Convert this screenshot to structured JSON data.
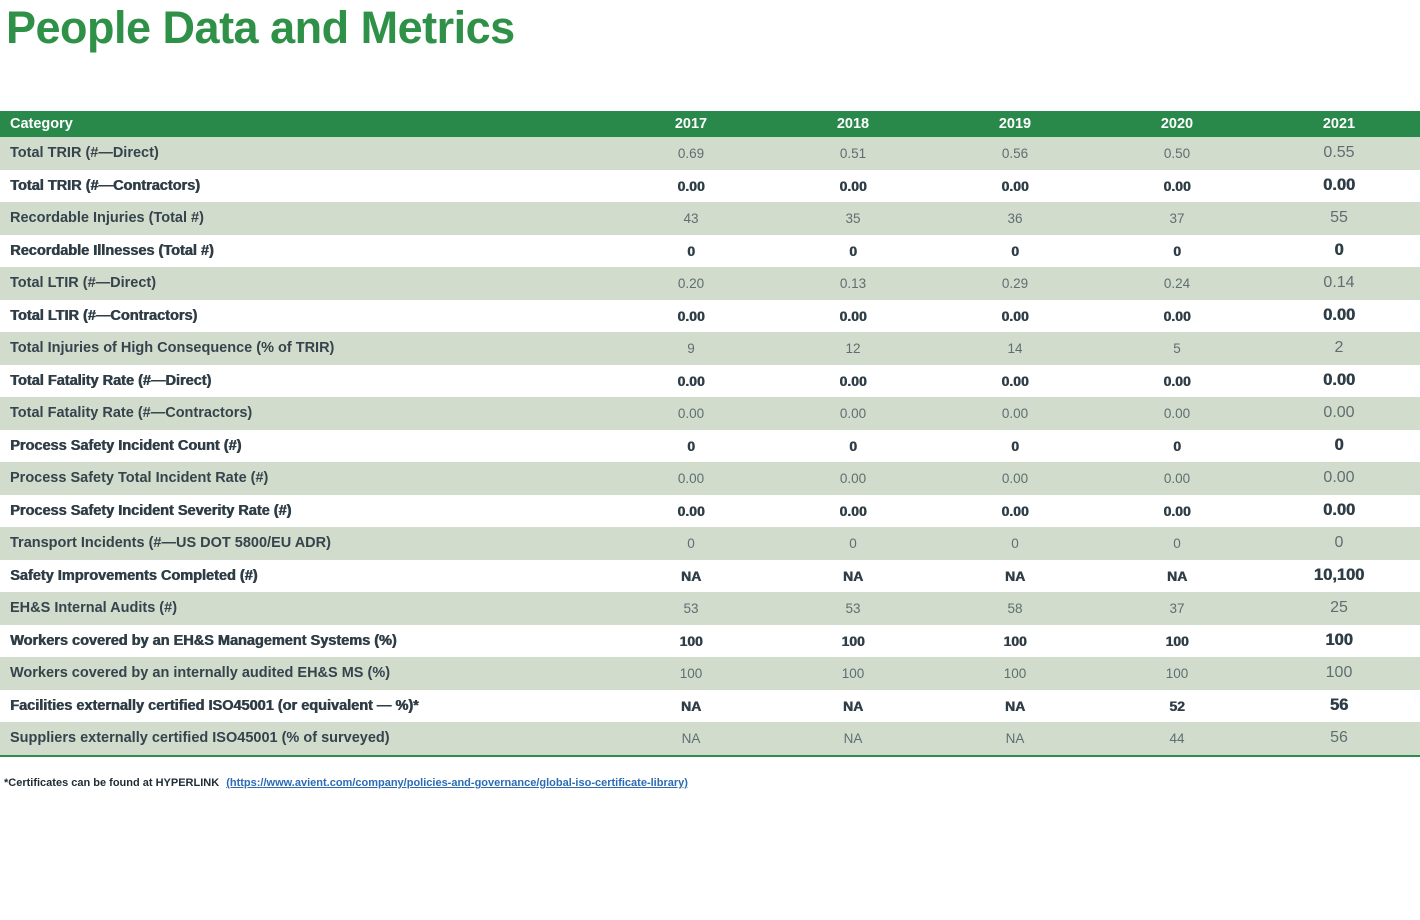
{
  "title": "People Data and Metrics",
  "table": {
    "header": {
      "category": "Category",
      "years": [
        "2017",
        "2018",
        "2019",
        "2020",
        "2021"
      ]
    },
    "rows": [
      {
        "label": "Total TRIR (#—Direct)",
        "values": [
          "0.69",
          "0.51",
          "0.56",
          "0.50",
          "0.55"
        ]
      },
      {
        "label": "Total TRIR (#—Contractors)",
        "values": [
          "0.00",
          "0.00",
          "0.00",
          "0.00",
          "0.00"
        ]
      },
      {
        "label": "Recordable Injuries (Total #)",
        "values": [
          "43",
          "35",
          "36",
          "37",
          "55"
        ]
      },
      {
        "label": "Recordable Illnesses (Total #)",
        "values": [
          "0",
          "0",
          "0",
          "0",
          "0"
        ]
      },
      {
        "label": "Total LTIR (#—Direct)",
        "values": [
          "0.20",
          "0.13",
          "0.29",
          "0.24",
          "0.14"
        ]
      },
      {
        "label": "Total LTIR (#—Contractors)",
        "values": [
          "0.00",
          "0.00",
          "0.00",
          "0.00",
          "0.00"
        ]
      },
      {
        "label": "Total Injuries of High Consequence (% of TRIR)",
        "values": [
          "9",
          "12",
          "14",
          "5",
          "2"
        ]
      },
      {
        "label": "Total Fatality Rate (#—Direct)",
        "values": [
          "0.00",
          "0.00",
          "0.00",
          "0.00",
          "0.00"
        ]
      },
      {
        "label": "Total Fatality Rate (#—Contractors)",
        "values": [
          "0.00",
          "0.00",
          "0.00",
          "0.00",
          "0.00"
        ]
      },
      {
        "label": "Process Safety Incident Count (#)",
        "values": [
          "0",
          "0",
          "0",
          "0",
          "0"
        ]
      },
      {
        "label": "Process Safety Total Incident Rate (#)",
        "values": [
          "0.00",
          "0.00",
          "0.00",
          "0.00",
          "0.00"
        ]
      },
      {
        "label": "Process Safety Incident Severity Rate (#)",
        "values": [
          "0.00",
          "0.00",
          "0.00",
          "0.00",
          "0.00"
        ]
      },
      {
        "label": "Transport Incidents (#—US DOT 5800/EU ADR)",
        "values": [
          "0",
          "0",
          "0",
          "0",
          "0"
        ]
      },
      {
        "label": "Safety Improvements Completed (#)",
        "values": [
          "NA",
          "NA",
          "NA",
          "NA",
          "10,100"
        ]
      },
      {
        "label": "EH&S Internal Audits (#)",
        "values": [
          "53",
          "53",
          "58",
          "37",
          "25"
        ]
      },
      {
        "label": "Workers covered by an EH&S Management Systems (%)",
        "values": [
          "100",
          "100",
          "100",
          "100",
          "100"
        ]
      },
      {
        "label": "Workers covered by an internally audited EH&S MS (%)",
        "values": [
          "100",
          "100",
          "100",
          "100",
          "100"
        ]
      },
      {
        "label": "Facilities externally certified ISO45001 (or equivalent — %)*",
        "values": [
          "NA",
          "NA",
          "NA",
          "52",
          "56"
        ]
      },
      {
        "label": "Suppliers externally certified ISO45001 (% of surveyed)",
        "values": [
          "NA",
          "NA",
          "NA",
          "44",
          "56"
        ]
      }
    ]
  },
  "footnote": {
    "prefix": "*Certificates can be found at HYPERLINK ",
    "link": "(https://www.avient.com/company/policies-and-governance/global-iso-certificate-library)"
  },
  "colors": {
    "title_green": "#2e9147",
    "header_green": "#28894a",
    "row_green": "#d2dccc",
    "label_dark": "#35434c",
    "value_gray": "#5e6e71",
    "link_blue": "#2b6cb4",
    "border_green": "#2e8b4a"
  }
}
